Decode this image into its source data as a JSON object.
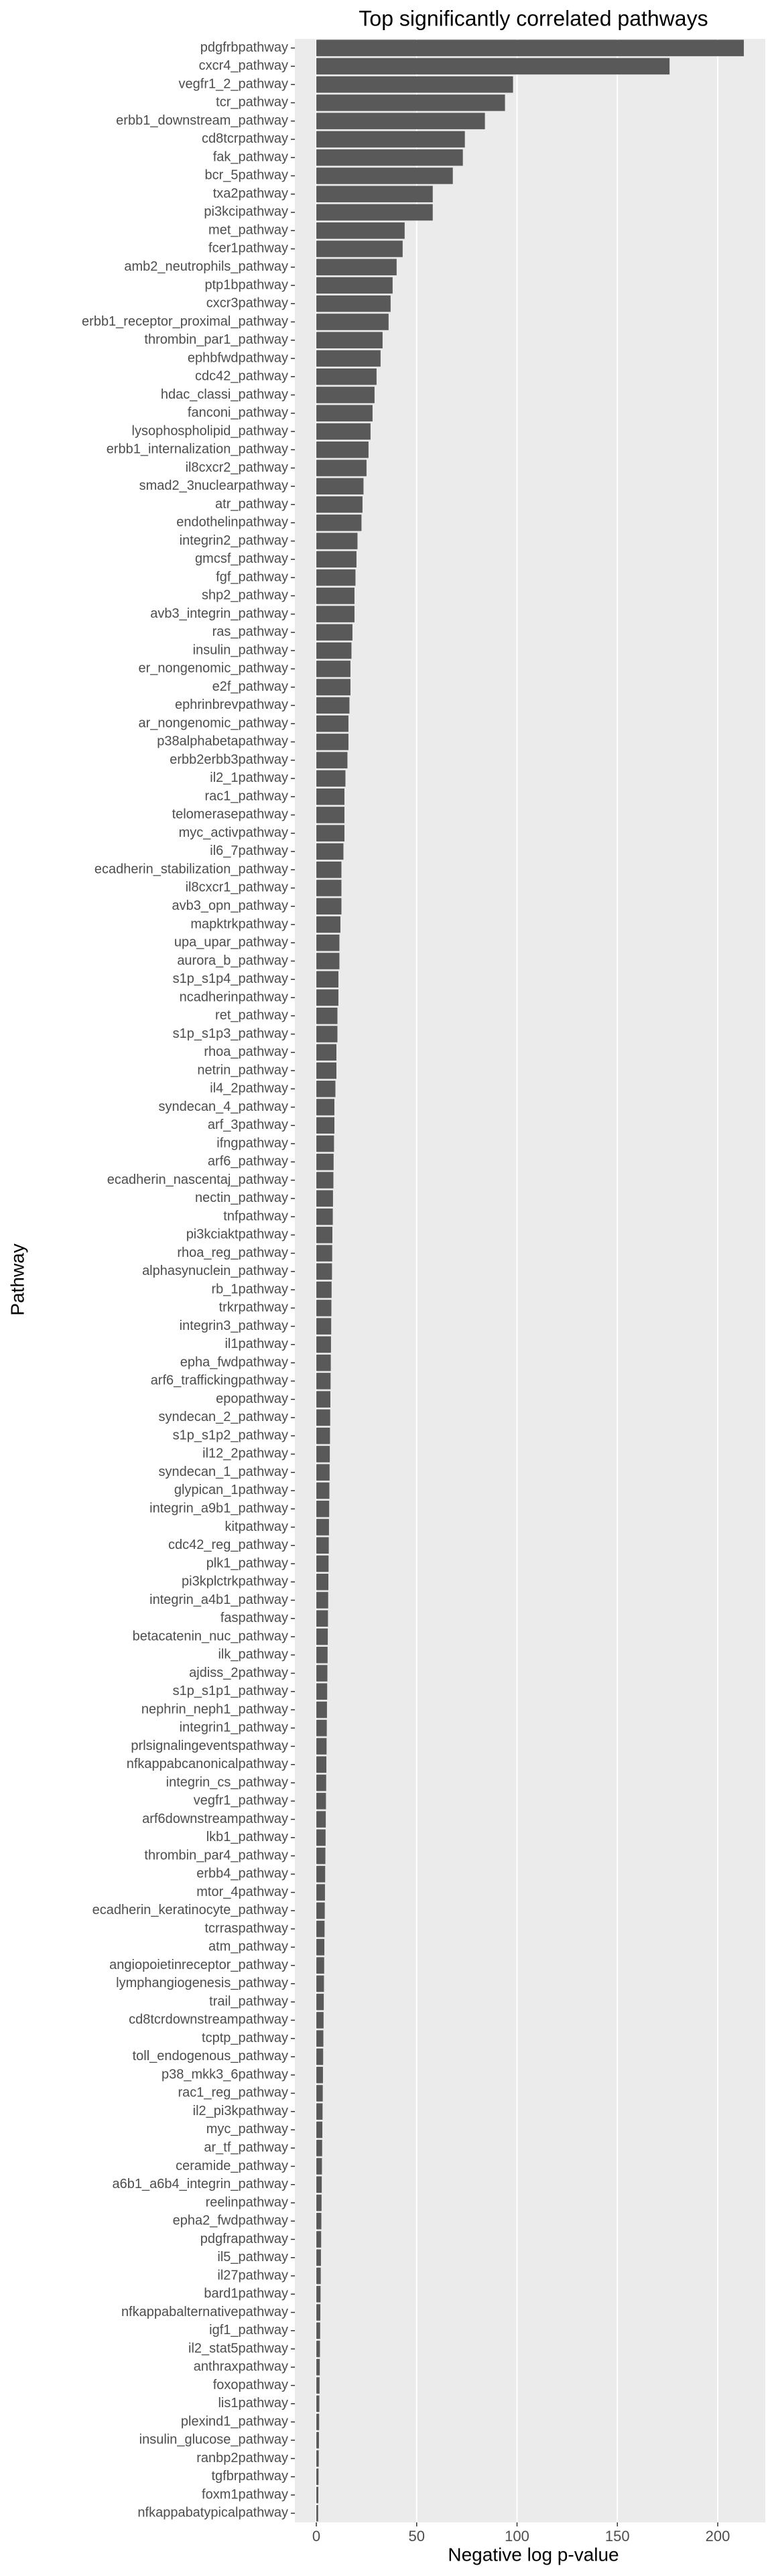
{
  "chart_data": {
    "type": "barh",
    "title": "Top significantly correlated pathways",
    "x_label": "Negative log p-value",
    "y_label": "Pathway",
    "color": "#595959",
    "grid": true,
    "categories": [
      "pdgfrbpathway",
      "cxcr4_pathway",
      "vegfr1_2_pathway",
      "tcr_pathway",
      "erbb1_downstream_pathway",
      "cd8tcrpathway",
      "fak_pathway",
      "bcr_5pathway",
      "txa2pathway",
      "pi3kcipathway",
      "met_pathway",
      "fcer1pathway",
      "amb2_neutrophils_pathway",
      "ptp1bpathway",
      "cxcr3pathway",
      "erbb1_receptor_proximal_pathway",
      "thrombin_par1_pathway",
      "ephbfwdpathway",
      "cdc42_pathway",
      "hdac_classi_pathway",
      "fanconi_pathway",
      "lysophospholipid_pathway",
      "erbb1_internalization_pathway",
      "il8cxcr2_pathway",
      "smad2_3nuclearpathway",
      "atr_pathway",
      "endothelinpathway",
      "integrin2_pathway",
      "gmcsf_pathway",
      "fgf_pathway",
      "shp2_pathway",
      "avb3_integrin_pathway",
      "ras_pathway",
      "insulin_pathway",
      "er_nongenomic_pathway",
      "e2f_pathway",
      "ephrinbrevpathway",
      "ar_nongenomic_pathway",
      "p38alphabetapathway",
      "erbb2erbb3pathway",
      "il2_1pathway",
      "rac1_pathway",
      "telomerasepathway",
      "myc_activpathway",
      "il6_7pathway",
      "ecadherin_stabilization_pathway",
      "il8cxcr1_pathway",
      "avb3_opn_pathway",
      "mapktrkpathway",
      "upa_upar_pathway",
      "aurora_b_pathway",
      "s1p_s1p4_pathway",
      "ncadherinpathway",
      "ret_pathway",
      "s1p_s1p3_pathway",
      "rhoa_pathway",
      "netrin_pathway",
      "il4_2pathway",
      "syndecan_4_pathway",
      "arf_3pathway",
      "ifngpathway",
      "arf6_pathway",
      "ecadherin_nascentaj_pathway",
      "nectin_pathway",
      "tnfpathway",
      "pi3kciaktpathway",
      "rhoa_reg_pathway",
      "alphasynuclein_pathway",
      "rb_1pathway",
      "trkrpathway",
      "integrin3_pathway",
      "il1pathway",
      "epha_fwdpathway",
      "arf6_traffickingpathway",
      "epopathway",
      "syndecan_2_pathway",
      "s1p_s1p2_pathway",
      "il12_2pathway",
      "syndecan_1_pathway",
      "glypican_1pathway",
      "integrin_a9b1_pathway",
      "kitpathway",
      "cdc42_reg_pathway",
      "plk1_pathway",
      "pi3kplctrkpathway",
      "integrin_a4b1_pathway",
      "faspathway",
      "betacatenin_nuc_pathway",
      "ilk_pathway",
      "ajdiss_2pathway",
      "s1p_s1p1_pathway",
      "nephrin_neph1_pathway",
      "integrin1_pathway",
      "prlsignalingeventspathway",
      "nfkappabcanonicalpathway",
      "integrin_cs_pathway",
      "vegfr1_pathway",
      "arf6downstreampathway",
      "lkb1_pathway",
      "thrombin_par4_pathway",
      "erbb4_pathway",
      "mtor_4pathway",
      "ecadherin_keratinocyte_pathway",
      "tcrraspathway",
      "atm_pathway",
      "angiopoietinreceptor_pathway",
      "lymphangiogenesis_pathway",
      "trail_pathway",
      "cd8tcrdownstreampathway",
      "tcptp_pathway",
      "toll_endogenous_pathway",
      "p38_mkk3_6pathway",
      "rac1_reg_pathway",
      "il2_pi3kpathway",
      "myc_pathway",
      "ar_tf_pathway",
      "ceramide_pathway",
      "a6b1_a6b4_integrin_pathway",
      "reelinpathway",
      "epha2_fwdpathway",
      "pdgfrapathway",
      "il5_pathway",
      "il27pathway",
      "bard1pathway",
      "nfkappabalternativepathway",
      "igf1_pathway",
      "il2_stat5pathway",
      "anthraxpathway",
      "foxopathway",
      "lis1pathway",
      "plexind1_pathway",
      "insulin_glucose_pathway",
      "ranbp2pathway",
      "tgfbrpathway",
      "foxm1pathway",
      "nfkappabatypicalpathway"
    ],
    "values": [
      213,
      176,
      98,
      94,
      84,
      74,
      73,
      68,
      58,
      58,
      44,
      43,
      40,
      38,
      37,
      36,
      33,
      32,
      30,
      29,
      28,
      27,
      26,
      25,
      23.5,
      23,
      22.5,
      20.5,
      20,
      19.5,
      19,
      19,
      18,
      17.5,
      17,
      17,
      16.5,
      16,
      16,
      15.5,
      14.5,
      14,
      14,
      14,
      13.5,
      12.5,
      12.5,
      12.5,
      12,
      11.5,
      11.5,
      11,
      11,
      10.5,
      10.5,
      10,
      10,
      9.5,
      9,
      9,
      8.8,
      8.6,
      8.5,
      8.3,
      8.2,
      8,
      7.9,
      7.8,
      7.6,
      7.5,
      7.4,
      7.3,
      7.2,
      7.1,
      7,
      6.9,
      6.8,
      6.7,
      6.6,
      6.5,
      6.4,
      6.3,
      6.2,
      6.1,
      6,
      5.9,
      5.8,
      5.7,
      5.6,
      5.5,
      5.4,
      5.3,
      5.2,
      5.1,
      5,
      4.9,
      4.8,
      4.7,
      4.6,
      4.5,
      4.4,
      4.3,
      4.2,
      4.1,
      4,
      3.9,
      3.8,
      3.7,
      3.6,
      3.5,
      3.4,
      3.3,
      3.2,
      3.1,
      3,
      2.9,
      2.8,
      2.7,
      2.6,
      2.5,
      2.4,
      2.3,
      2.2,
      2.1,
      2,
      1.9,
      1.8,
      1.7,
      1.6,
      1.5,
      1.4,
      1.3,
      1.2,
      1.1,
      1,
      0.9
    ],
    "xlim": [
      -10.7,
      223.7
    ],
    "xticks": [
      0,
      50,
      100,
      150,
      200
    ]
  }
}
